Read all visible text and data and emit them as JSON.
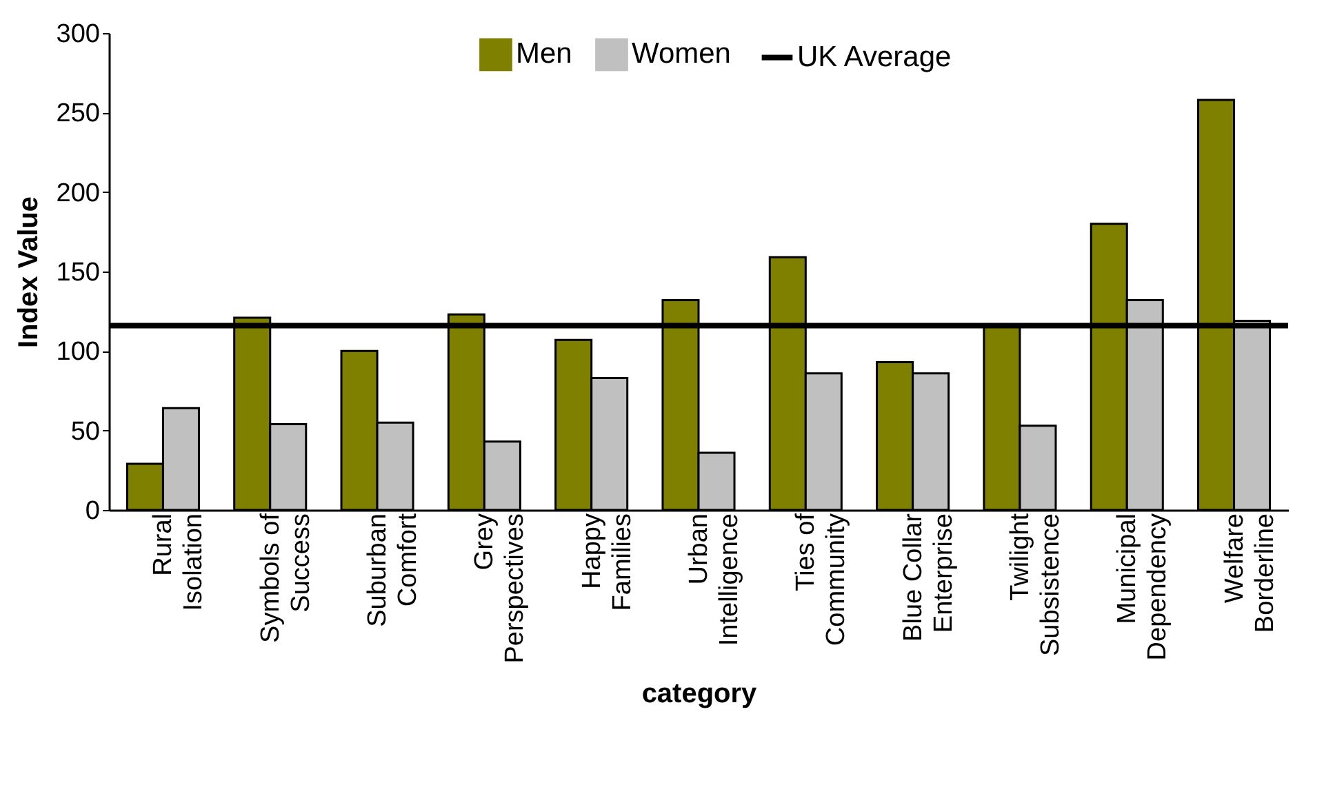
{
  "chart_data": {
    "type": "bar",
    "xlabel": "category",
    "ylabel": "Index Value",
    "categories": [
      "Rural Isolation",
      "Symbols of Success",
      "Suburban Comfort",
      "Grey Perspectives",
      "Happy Families",
      "Urban Intelligence",
      "Ties of Community",
      "Blue Collar Enterprise",
      "Twilight Subsistence",
      "Municipal Dependency",
      "Welfare Borderline"
    ],
    "series": [
      {
        "name": "Men",
        "color": "#808000",
        "values": [
          29,
          121,
          100,
          123,
          107,
          132,
          159,
          93,
          116,
          180,
          258
        ]
      },
      {
        "name": "Women",
        "color": "#c0c0c0",
        "values": [
          64,
          54,
          55,
          43,
          83,
          36,
          86,
          86,
          53,
          132,
          119
        ]
      }
    ],
    "ref_lines": [
      {
        "axis": "y",
        "value": 116,
        "label": "UK Average",
        "color": "#000000"
      }
    ],
    "ylim": [
      0,
      300
    ],
    "yticks": [
      0,
      50,
      100,
      150,
      200,
      250,
      300
    ],
    "grid": false,
    "legend": "top"
  }
}
